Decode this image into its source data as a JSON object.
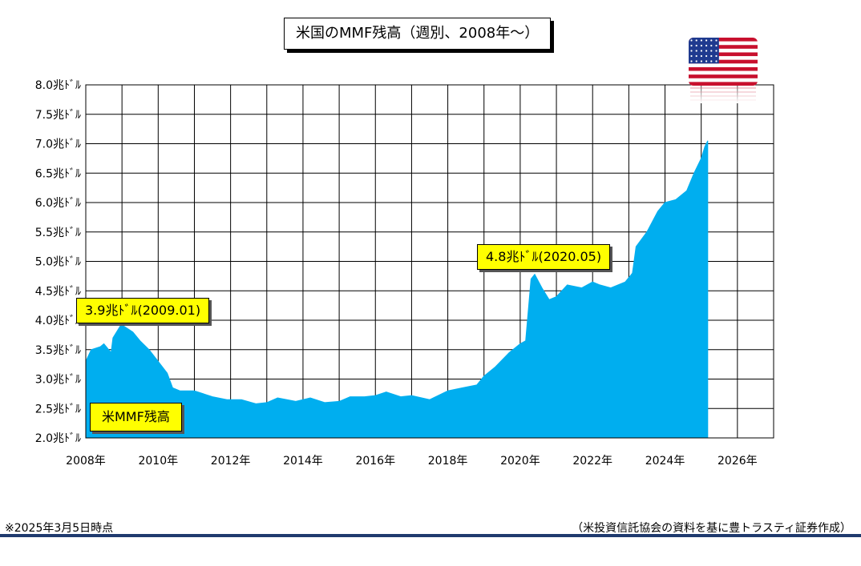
{
  "chart_data": {
    "type": "area",
    "title": "米国のMMF残高（週別、2008年～）",
    "series": [
      {
        "name": "米MMF残高",
        "color": "#00aeef",
        "x": [
          2008.0,
          2008.15,
          2008.4,
          2008.5,
          2008.7,
          2008.75,
          2008.95,
          2009.05,
          2009.3,
          2009.5,
          2009.75,
          2010.0,
          2010.25,
          2010.4,
          2010.6,
          2011.0,
          2011.5,
          2011.9,
          2012.3,
          2012.7,
          2013.0,
          2013.3,
          2013.8,
          2014.2,
          2014.6,
          2015.0,
          2015.3,
          2015.7,
          2016.0,
          2016.3,
          2016.7,
          2017.0,
          2017.5,
          2018.0,
          2018.4,
          2018.8,
          2019.0,
          2019.3,
          2019.7,
          2020.0,
          2020.15,
          2020.3,
          2020.4,
          2020.6,
          2020.8,
          2021.0,
          2021.3,
          2021.7,
          2022.0,
          2022.2,
          2022.5,
          2022.9,
          2023.1,
          2023.2,
          2023.5,
          2023.8,
          2024.0,
          2024.3,
          2024.6,
          2024.8,
          2025.0,
          2025.1,
          2025.18
        ],
        "values": [
          3.3,
          3.5,
          3.55,
          3.6,
          3.45,
          3.7,
          3.9,
          3.9,
          3.8,
          3.65,
          3.5,
          3.3,
          3.1,
          2.85,
          2.8,
          2.8,
          2.7,
          2.65,
          2.65,
          2.58,
          2.6,
          2.68,
          2.62,
          2.68,
          2.6,
          2.62,
          2.7,
          2.7,
          2.72,
          2.78,
          2.7,
          2.72,
          2.65,
          2.8,
          2.85,
          2.9,
          3.05,
          3.2,
          3.45,
          3.6,
          3.65,
          4.7,
          4.78,
          4.55,
          4.35,
          4.4,
          4.6,
          4.55,
          4.65,
          4.6,
          4.55,
          4.65,
          4.8,
          5.25,
          5.5,
          5.85,
          6.0,
          6.05,
          6.2,
          6.5,
          6.75,
          6.95,
          7.05
        ]
      }
    ],
    "xlim": [
      2008,
      2027
    ],
    "ylim": [
      2.0,
      8.0
    ],
    "x_ticks": [
      2008,
      2010,
      2012,
      2014,
      2016,
      2018,
      2020,
      2022,
      2024,
      2026
    ],
    "x_tick_labels": [
      "2008年",
      "2010年",
      "2012年",
      "2014年",
      "2016年",
      "2018年",
      "2020年",
      "2022年",
      "2024年",
      "2026年"
    ],
    "y_ticks": [
      2.0,
      2.5,
      3.0,
      3.5,
      4.0,
      4.5,
      5.0,
      5.5,
      6.0,
      6.5,
      7.0,
      7.5,
      8.0
    ],
    "y_tick_labels": [
      "2.0兆ﾄﾞﾙ",
      "2.5兆ﾄﾞﾙ",
      "3.0兆ﾄﾞﾙ",
      "3.5兆ﾄﾞﾙ",
      "4.0兆ﾄﾞﾙ",
      "4.5兆ﾄﾞﾙ",
      "5.0兆ﾄﾞﾙ",
      "5.5兆ﾄﾞﾙ",
      "6.0兆ﾄﾞﾙ",
      "6.5兆ﾄﾞﾙ",
      "7.0兆ﾄﾞﾙ",
      "7.5兆ﾄﾞﾙ",
      "8.0兆ﾄﾞﾙ"
    ],
    "grid": true,
    "legend": "bottom-left",
    "annotations": [
      {
        "text": "3.9兆ﾄﾞﾙ(2009.01)",
        "x": 2009.0,
        "y": 3.9
      },
      {
        "text": "4.8兆ﾄﾞﾙ(2020.05)",
        "x": 2020.4,
        "y": 4.8
      }
    ]
  },
  "legend_label": "米MMF残高",
  "footnote_left": "※2025年3月5日時点",
  "footnote_right": "（米投資信託協会の資料を基に豊トラスティ証券作成）",
  "flag": {
    "icon": "us-flag-icon",
    "red": "#c8102e",
    "blue": "#1f3a8f"
  },
  "colors": {
    "area": "#00aeef",
    "annotation": "#ffff00",
    "rule": "#1f3a6e"
  }
}
